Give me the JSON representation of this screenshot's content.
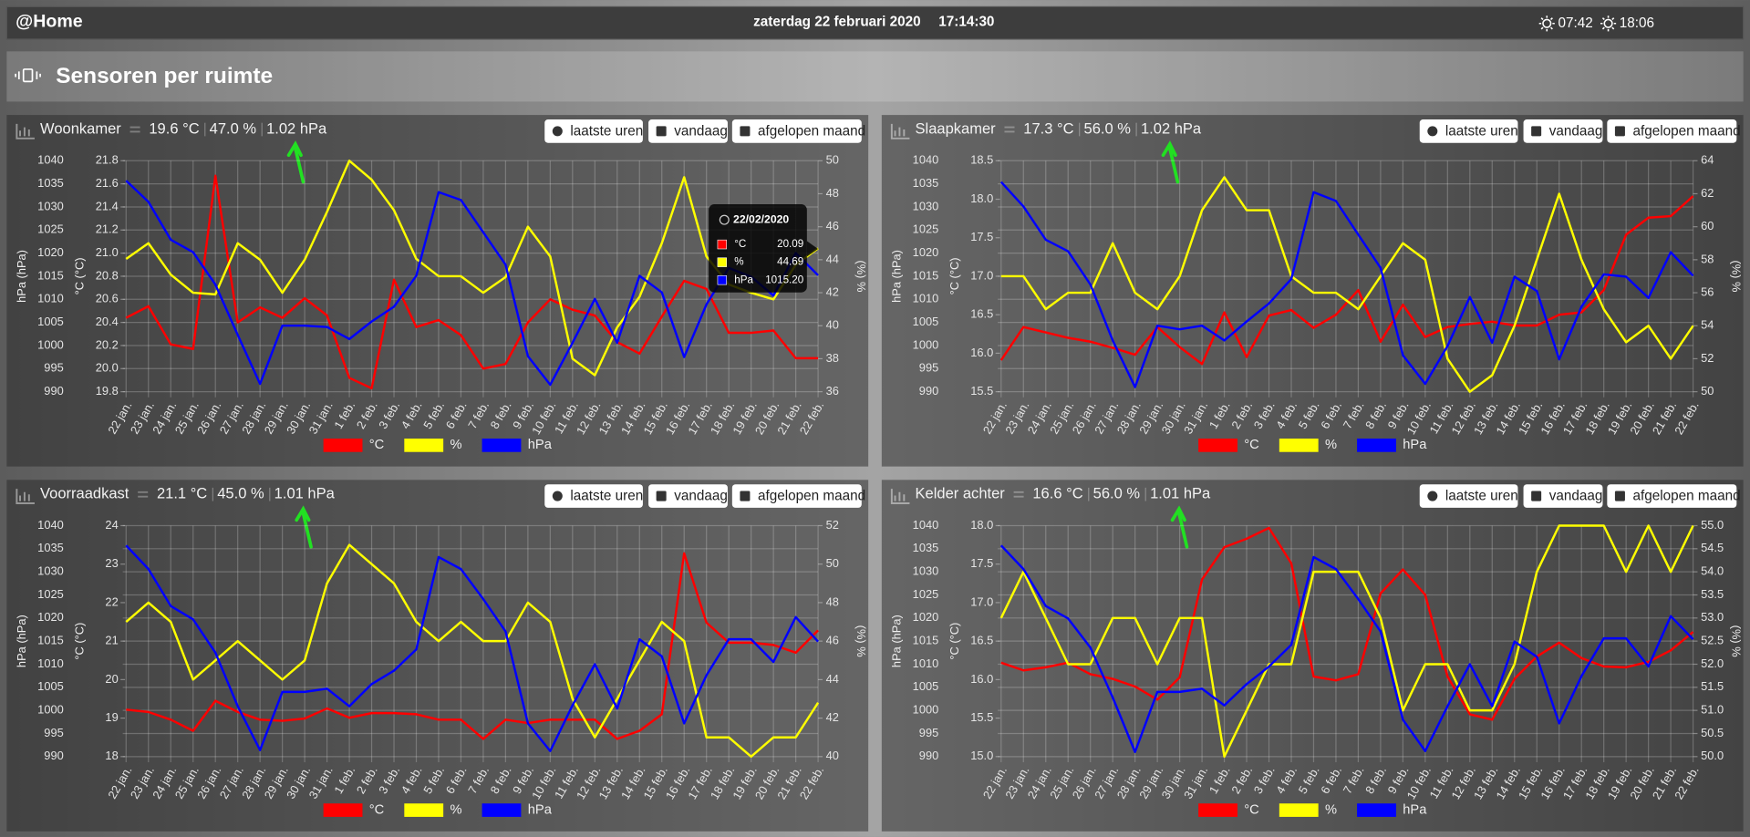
{
  "header": {
    "brand": "@Home",
    "date": "zaterdag 22 februari 2020",
    "time": "17:14:30",
    "sunrise": "07:42",
    "sunset": "18:06"
  },
  "section_title": "Sensoren per ruimte",
  "buttons": [
    "laatste uren",
    "vandaag",
    "afgelopen maand"
  ],
  "chart_data": [
    {
      "type": "line",
      "title": "Woonkamer",
      "readings": [
        "19.6 °C",
        "47.0 %",
        "1.02 hPa"
      ],
      "categories": [
        "22 jan.",
        "23 jan.",
        "24 jan.",
        "25 jan.",
        "26 jan.",
        "27 jan.",
        "28 jan.",
        "29 jan.",
        "30 jan.",
        "31 jan.",
        "1 feb.",
        "2 feb.",
        "3 feb.",
        "4 feb.",
        "5 feb.",
        "6 feb.",
        "7 feb.",
        "8 feb.",
        "9 feb.",
        "10 feb.",
        "11 feb.",
        "12 feb.",
        "13 feb.",
        "14 feb.",
        "15 feb.",
        "16 feb.",
        "17 feb.",
        "18 feb.",
        "19 feb.",
        "20 feb.",
        "21 feb.",
        "22 feb."
      ],
      "y_label": "hPa (hPa)",
      "y2_label": "°C (°C)",
      "y3_label": "(%) %",
      "ylim": [
        990,
        1040
      ],
      "yticks": [
        990,
        995,
        1000,
        1005,
        1010,
        1015,
        1020,
        1025,
        1030,
        1035,
        1040
      ],
      "y2lim": [
        19.8,
        21.8
      ],
      "y2ticks": [
        19.8,
        {
          "value": 20,
          "label": "20.0"
        },
        20.2,
        20.4,
        20.6,
        20.8,
        {
          "value": 21,
          "label": "21.0"
        },
        21.2,
        21.4,
        21.6,
        21.8
      ],
      "y3lim": [
        36,
        50
      ],
      "y3ticks": [
        36,
        38,
        40,
        42,
        44,
        46,
        48,
        50
      ],
      "grid": true,
      "series": [
        {
          "name": "°C",
          "color": "#ff0000",
          "axis": "y2",
          "values": [
            20.44,
            20.54,
            20.21,
            20.17,
            21.67,
            20.4,
            20.53,
            20.44,
            20.61,
            20.46,
            19.92,
            19.83,
            20.77,
            20.36,
            20.42,
            20.29,
            20.0,
            20.04,
            20.4,
            20.6,
            20.51,
            20.46,
            20.23,
            20.13,
            20.45,
            20.76,
            20.69,
            20.31,
            20.31,
            20.33,
            20.09,
            20.09
          ]
        },
        {
          "name": "%",
          "color": "#ffff00",
          "axis": "y3",
          "values": [
            44.05,
            45.0,
            43.1,
            42.0,
            41.9,
            45.0,
            44.0,
            42.0,
            44.0,
            46.9,
            50.0,
            48.85,
            47.0,
            44.05,
            43.0,
            43.0,
            42.0,
            42.95,
            46.0,
            44.2,
            38.0,
            37.0,
            39.9,
            41.75,
            45.0,
            49.0,
            44.2,
            42.5,
            42.0,
            41.6,
            43.7,
            44.69
          ]
        },
        {
          "name": "hPa",
          "color": "#0000ff",
          "axis": "y",
          "values": [
            1035.7,
            1031.1,
            1022.9,
            1020.2,
            1013.2,
            1002.3,
            991.7,
            1004.3,
            1004.3,
            1004.0,
            1001.4,
            1005.2,
            1008.4,
            1015.1,
            1033.2,
            1031.5,
            1024.5,
            1017.5,
            997.7,
            991.5,
            1000.6,
            1010.1,
            1000.6,
            1015.1,
            1011.5,
            997.5,
            1008.9,
            1016.8,
            1014.9,
            1010.8,
            1020.0,
            1015.2
          ]
        }
      ],
      "tooltip": {
        "title": "22/02/2020",
        "items": [
          {
            "name": "°C",
            "value": "20.09"
          },
          {
            "name": "%",
            "value": "44.69"
          },
          {
            "name": "hPa",
            "value": "1015.20"
          }
        ]
      }
    },
    {
      "type": "line",
      "title": "Slaapkamer",
      "readings": [
        "17.3 °C",
        "56.0 %",
        "1.02 hPa"
      ],
      "categories": [
        "22 jan.",
        "23 jan.",
        "24 jan.",
        "25 jan.",
        "26 jan.",
        "27 jan.",
        "28 jan.",
        "29 jan.",
        "30 jan.",
        "31 jan.",
        "1 feb.",
        "2 feb.",
        "3 feb.",
        "4 feb.",
        "5 feb.",
        "6 feb.",
        "7 feb.",
        "8 feb.",
        "9 feb.",
        "10 feb.",
        "11 feb.",
        "12 feb.",
        "13 feb.",
        "14 feb.",
        "15 feb.",
        "16 feb.",
        "17 feb.",
        "18 feb.",
        "19 feb.",
        "20 feb.",
        "21 feb.",
        "22 feb."
      ],
      "y_label": "hPa (hPa)",
      "y2_label": "°C (°C)",
      "y3_label": "(%) %",
      "ylim": [
        990,
        1040
      ],
      "yticks": [
        990,
        995,
        1000,
        1005,
        1010,
        1015,
        1020,
        1025,
        1030,
        1035,
        1040
      ],
      "y2lim": [
        15.5,
        18.5
      ],
      "y2ticks": [
        15.5,
        {
          "value": 16,
          "label": "16.0"
        },
        16.5,
        {
          "value": 17,
          "label": "17.0"
        },
        17.5,
        {
          "value": 18,
          "label": "18.0"
        },
        18.5
      ],
      "y3lim": [
        50,
        64
      ],
      "y3ticks": [
        50,
        52,
        54,
        56,
        58,
        60,
        62,
        64
      ],
      "grid": true,
      "series": [
        {
          "name": "°C",
          "color": "#ff0000",
          "axis": "y2",
          "values": [
            15.91,
            16.34,
            16.27,
            16.2,
            16.15,
            16.07,
            15.98,
            16.34,
            16.08,
            15.86,
            16.53,
            15.95,
            16.49,
            16.56,
            16.33,
            16.5,
            16.82,
            16.15,
            16.63,
            16.21,
            16.34,
            16.38,
            16.41,
            16.36,
            16.36,
            16.5,
            16.53,
            16.82,
            17.54,
            17.76,
            17.78,
            18.04
          ]
        },
        {
          "name": "%",
          "color": "#ffff00",
          "axis": "y3",
          "values": [
            57,
            57,
            55,
            56,
            56,
            59,
            56,
            55,
            57,
            61,
            63,
            61,
            61,
            57,
            56,
            56,
            55,
            57,
            59,
            58,
            52,
            50,
            51,
            54,
            58,
            62,
            58,
            55,
            53,
            54,
            52,
            54
          ]
        },
        {
          "name": "hPa",
          "color": "#0000ff",
          "axis": "y",
          "values": [
            1035.4,
            1030.1,
            1022.9,
            1020.4,
            1013.2,
            1001.1,
            991.0,
            1004.3,
            1003.5,
            1004.3,
            1001.1,
            1005.2,
            1009.1,
            1014.4,
            1033.2,
            1031.3,
            1024.0,
            1016.8,
            997.9,
            991.7,
            999.9,
            1010.5,
            1000.6,
            1014.9,
            1011.8,
            997.0,
            1008.4,
            1015.4,
            1014.9,
            1010.3,
            1020.2,
            1015.1
          ]
        }
      ]
    },
    {
      "type": "line",
      "title": "Voorraadkast",
      "readings": [
        "21.1 °C",
        "45.0 %",
        "1.01 hPa"
      ],
      "categories": [
        "22 jan.",
        "23 jan.",
        "24 jan.",
        "25 jan.",
        "26 jan.",
        "27 jan.",
        "28 jan.",
        "29 jan.",
        "30 jan.",
        "31 jan.",
        "1 feb.",
        "2 feb.",
        "3 feb.",
        "4 feb.",
        "5 feb.",
        "6 feb.",
        "7 feb.",
        "8 feb.",
        "9 feb.",
        "10 feb.",
        "11 feb.",
        "12 feb.",
        "13 feb.",
        "14 feb.",
        "15 feb.",
        "16 feb.",
        "17 feb.",
        "18 feb.",
        "19 feb.",
        "20 feb.",
        "21 feb.",
        "22 feb."
      ],
      "y_label": "hPa (hPa)",
      "y2_label": "°C (°C)",
      "y3_label": "(%) %",
      "ylim": [
        990,
        1040
      ],
      "yticks": [
        990,
        995,
        1000,
        1005,
        1010,
        1015,
        1020,
        1025,
        1030,
        1035,
        1040
      ],
      "y2lim": [
        18,
        24
      ],
      "y2ticks": [
        18,
        19,
        20,
        21,
        22,
        23,
        24
      ],
      "y3lim": [
        40,
        52
      ],
      "y3ticks": [
        40,
        42,
        44,
        46,
        48,
        50,
        52
      ],
      "grid": true,
      "series": [
        {
          "name": "°C",
          "color": "#ff0000",
          "axis": "y2",
          "values": [
            19.22,
            19.16,
            18.96,
            18.67,
            19.45,
            19.16,
            18.96,
            18.93,
            18.99,
            19.25,
            19.01,
            19.13,
            19.13,
            19.1,
            18.96,
            18.96,
            18.46,
            18.96,
            18.87,
            18.96,
            18.96,
            18.96,
            18.46,
            18.67,
            19.1,
            23.28,
            21.48,
            20.96,
            20.96,
            20.9,
            20.7,
            21.28
          ]
        },
        {
          "name": "%",
          "color": "#ffff00",
          "axis": "y3",
          "values": [
            47,
            48,
            47,
            44,
            45,
            46,
            45,
            44,
            45,
            49,
            51,
            50,
            49,
            47,
            46,
            47,
            46,
            46,
            48,
            47,
            43,
            41,
            43,
            45,
            47,
            46,
            41,
            41,
            40,
            41,
            41,
            42.8
          ]
        },
        {
          "name": "hPa",
          "color": "#0000ff",
          "axis": "y",
          "values": [
            1035.7,
            1030.6,
            1022.6,
            1019.7,
            1012.5,
            1000.9,
            991.4,
            1004.0,
            1004.0,
            1004.7,
            1000.9,
            1005.7,
            1008.6,
            1013.2,
            1033.2,
            1030.6,
            1024.1,
            1017.1,
            997.2,
            991.2,
            1001.1,
            1010.0,
            1000.4,
            1015.4,
            1011.7,
            997.2,
            1007.6,
            1015.4,
            1015.4,
            1010.5,
            1020.2,
            1014.9
          ]
        }
      ]
    },
    {
      "type": "line",
      "title": "Kelder achter",
      "readings": [
        "16.6 °C",
        "56.0 %",
        "1.01 hPa"
      ],
      "categories": [
        "22 jan.",
        "23 jan.",
        "24 jan.",
        "25 jan.",
        "26 jan.",
        "27 jan.",
        "28 jan.",
        "29 jan.",
        "30 jan.",
        "31 jan.",
        "1 feb.",
        "2 feb.",
        "3 feb.",
        "4 feb.",
        "5 feb.",
        "6 feb.",
        "7 feb.",
        "8 feb.",
        "9 feb.",
        "10 feb.",
        "11 feb.",
        "12 feb.",
        "13 feb.",
        "14 feb.",
        "15 feb.",
        "16 feb.",
        "17 feb.",
        "18 feb.",
        "19 feb.",
        "20 feb.",
        "21 feb.",
        "22 feb."
      ],
      "y_label": "hPa (hPa)",
      "y2_label": "°C (°C)",
      "y3_label": "(%) %",
      "ylim": [
        990,
        1040
      ],
      "yticks": [
        990,
        995,
        1000,
        1005,
        1010,
        1015,
        1020,
        1025,
        1030,
        1035,
        1040
      ],
      "y2lim": [
        15,
        18
      ],
      "y2ticks": [
        {
          "value": 15,
          "label": "15.0"
        },
        15.5,
        {
          "value": 16,
          "label": "16.0"
        },
        16.5,
        {
          "value": 17,
          "label": "17.0"
        },
        17.5,
        {
          "value": 18,
          "label": "18.0"
        }
      ],
      "y3lim": [
        50,
        55
      ],
      "y3ticks": [
        {
          "value": 50,
          "label": "50.0"
        },
        50.5,
        {
          "value": 51,
          "label": "51.0"
        },
        51.5,
        {
          "value": 52,
          "label": "52.0"
        },
        52.5,
        {
          "value": 53,
          "label": "53.0"
        },
        53.5,
        {
          "value": 54,
          "label": "54.0"
        },
        54.5,
        {
          "value": 55,
          "label": "55.0"
        }
      ],
      "grid": true,
      "series": [
        {
          "name": "°C",
          "color": "#ff0000",
          "axis": "y2",
          "values": [
            16.22,
            16.12,
            16.16,
            16.22,
            16.07,
            16.01,
            15.91,
            15.74,
            16.03,
            17.3,
            17.72,
            17.83,
            17.97,
            17.51,
            16.04,
            15.99,
            16.07,
            17.12,
            17.43,
            17.1,
            16.04,
            15.55,
            15.48,
            16.01,
            16.3,
            16.48,
            16.28,
            16.17,
            16.16,
            16.23,
            16.38,
            16.62
          ]
        },
        {
          "name": "%",
          "color": "#ffff00",
          "axis": "y3",
          "values": [
            53,
            54,
            53,
            52,
            52,
            53,
            53,
            52,
            53,
            53,
            50,
            51,
            52,
            52,
            54,
            54,
            54,
            53,
            51,
            52,
            52,
            51,
            51,
            52,
            54,
            55,
            55,
            55,
            54,
            55,
            54,
            55
          ]
        },
        {
          "name": "hPa",
          "color": "#0000ff",
          "axis": "y",
          "values": [
            1035.7,
            1030.6,
            1022.6,
            1019.9,
            1013.6,
            1002.8,
            991.0,
            1004.0,
            1004.0,
            1004.7,
            1001.1,
            1005.7,
            1009.5,
            1014.2,
            1033.2,
            1030.6,
            1024.1,
            1017.1,
            998.0,
            991.2,
            1000.9,
            1010.0,
            1000.9,
            1014.9,
            1011.6,
            997.2,
            1007.4,
            1015.6,
            1015.6,
            1009.5,
            1020.4,
            1015.4
          ]
        }
      ]
    }
  ]
}
